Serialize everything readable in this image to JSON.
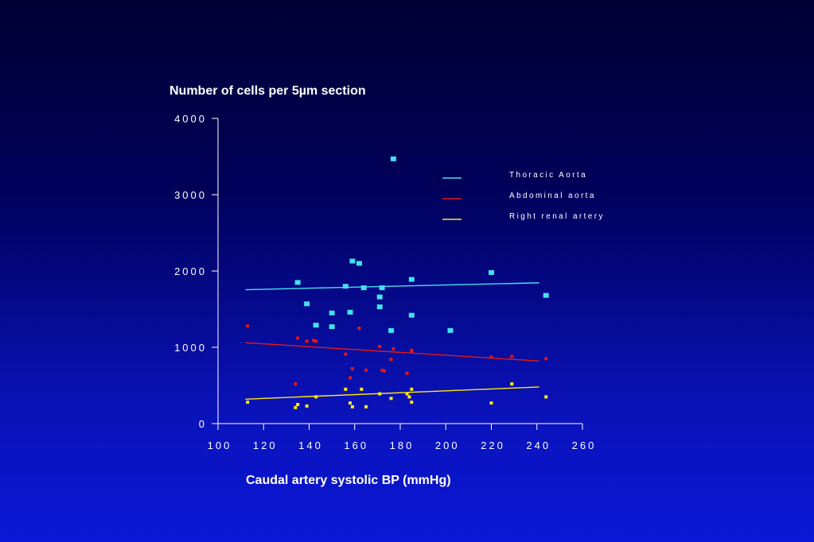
{
  "chart_data": {
    "type": "scatter",
    "title": "",
    "ylabel": "Number of cells per 5µm section",
    "xlabel": "Caudal artery systolic BP (mmHg)",
    "xlim": [
      100,
      260
    ],
    "ylim": [
      0,
      4000
    ],
    "xticks": [
      100,
      120,
      140,
      160,
      180,
      200,
      220,
      240,
      260
    ],
    "yticks": [
      0,
      1000,
      2000,
      3000,
      4000
    ],
    "xtick_labels": [
      "100",
      "120",
      "140",
      "160",
      "180",
      "200",
      "220",
      "240",
      "260"
    ],
    "ytick_labels": [
      "0",
      "1000",
      "2000",
      "3000",
      "4000"
    ],
    "legend_position": "top-right",
    "series": [
      {
        "name": "Thoracic Aorta",
        "color": "#44e0ee",
        "marker_size": "large",
        "points": [
          [
            135,
            1850
          ],
          [
            139,
            1570
          ],
          [
            143,
            1290
          ],
          [
            150,
            1270
          ],
          [
            150,
            1450
          ],
          [
            156,
            1800
          ],
          [
            158,
            1460
          ],
          [
            159,
            2130
          ],
          [
            162,
            2100
          ],
          [
            164,
            1780
          ],
          [
            171,
            1660
          ],
          [
            171,
            1530
          ],
          [
            172,
            1780
          ],
          [
            176,
            1220
          ],
          [
            177,
            3470
          ],
          [
            185,
            1890
          ],
          [
            185,
            1420
          ],
          [
            202,
            1220
          ],
          [
            220,
            1980
          ],
          [
            244,
            1680
          ]
        ],
        "trendline": [
          [
            112,
            1755
          ],
          [
            241,
            1845
          ]
        ]
      },
      {
        "name": "Abdominal aorta",
        "color": "#e01818",
        "marker_size": "small",
        "points": [
          [
            113,
            1280
          ],
          [
            134,
            520
          ],
          [
            135,
            1120
          ],
          [
            139,
            1080
          ],
          [
            142,
            1090
          ],
          [
            143,
            1080
          ],
          [
            156,
            910
          ],
          [
            158,
            600
          ],
          [
            159,
            720
          ],
          [
            162,
            1250
          ],
          [
            165,
            700
          ],
          [
            171,
            1010
          ],
          [
            172,
            700
          ],
          [
            173,
            690
          ],
          [
            176,
            840
          ],
          [
            177,
            980
          ],
          [
            183,
            660
          ],
          [
            185,
            960
          ],
          [
            185,
            940
          ],
          [
            220,
            870
          ],
          [
            229,
            880
          ],
          [
            244,
            850
          ]
        ],
        "trendline": [
          [
            112,
            1060
          ],
          [
            241,
            820
          ]
        ]
      },
      {
        "name": "Right renal artery",
        "color": "#ffe81a",
        "marker_size": "small",
        "points": [
          [
            113,
            280
          ],
          [
            134,
            210
          ],
          [
            135,
            250
          ],
          [
            139,
            230
          ],
          [
            143,
            350
          ],
          [
            156,
            450
          ],
          [
            158,
            270
          ],
          [
            159,
            220
          ],
          [
            163,
            450
          ],
          [
            165,
            220
          ],
          [
            171,
            390
          ],
          [
            176,
            330
          ],
          [
            183,
            390
          ],
          [
            184,
            350
          ],
          [
            185,
            450
          ],
          [
            185,
            280
          ],
          [
            220,
            270
          ],
          [
            229,
            520
          ],
          [
            244,
            350
          ]
        ],
        "trendline": [
          [
            112,
            320
          ],
          [
            241,
            480
          ]
        ]
      }
    ]
  }
}
